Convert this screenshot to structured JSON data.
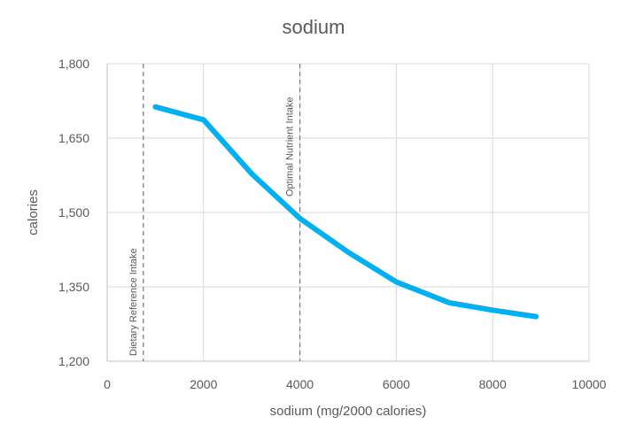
{
  "chart_data": {
    "type": "line",
    "title": "sodium",
    "xlabel": "sodium (mg/2000 calories)",
    "ylabel": "calories",
    "xlim": [
      0,
      10000
    ],
    "ylim": [
      1200,
      1800
    ],
    "x_ticks": [
      0,
      2000,
      4000,
      6000,
      8000,
      10000
    ],
    "x_tick_labels": [
      "0",
      "2000",
      "4000",
      "6000",
      "8000",
      "10000"
    ],
    "y_ticks": [
      1200,
      1350,
      1500,
      1650,
      1800
    ],
    "y_tick_labels": [
      "1,200",
      "1,350",
      "1,500",
      "1,650",
      "1,800"
    ],
    "grid": true,
    "series": [
      {
        "color": "#00b0f0",
        "x": [
          1000,
          2000,
          3000,
          4000,
          5000,
          6000,
          7100,
          8000,
          8900
        ],
        "y": [
          1713,
          1687,
          1578,
          1488,
          1420,
          1360,
          1318,
          1303,
          1290
        ]
      }
    ],
    "reference_lines": [
      {
        "x": 750,
        "label": "Dietary Reference Intake"
      },
      {
        "x": 4000,
        "label": "Optimal Nutrient Intake"
      }
    ]
  }
}
